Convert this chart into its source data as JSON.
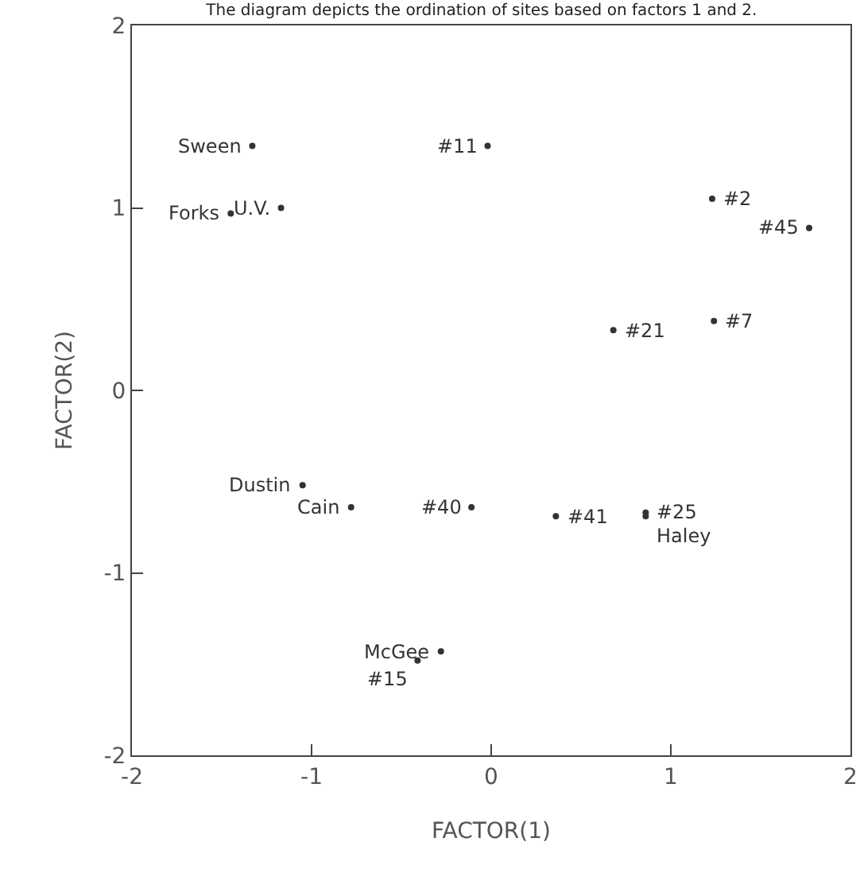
{
  "chart_data": {
    "type": "scatter",
    "title": "The diagram depicts the ordination of sites based on factors 1 and 2.",
    "xlabel": "FACTOR(1)",
    "ylabel": "FACTOR(2)",
    "x": [
      -1.33,
      -0.02,
      -1.45,
      -1.17,
      1.23,
      1.77,
      0.68,
      1.24,
      -1.05,
      -0.78,
      -0.11,
      0.36,
      0.86,
      0.86,
      -0.28,
      -0.41
    ],
    "values": [
      1.34,
      1.34,
      0.97,
      1.0,
      1.05,
      0.89,
      0.33,
      0.38,
      -0.52,
      -0.64,
      -0.64,
      -0.69,
      -0.67,
      -0.69,
      -1.43,
      -1.48
    ],
    "annotations": [
      {
        "text": "Sween",
        "x": -1.33,
        "y": 1.34
      },
      {
        "text": "#11",
        "x": -0.02,
        "y": 1.34
      },
      {
        "text": "Forks",
        "x": -1.45,
        "y": 0.97
      },
      {
        "text": "U.V.",
        "x": -1.17,
        "y": 1.0
      },
      {
        "text": "#2",
        "x": 1.23,
        "y": 1.05
      },
      {
        "text": "#45",
        "x": 1.77,
        "y": 0.89
      },
      {
        "text": "#21",
        "x": 0.68,
        "y": 0.33
      },
      {
        "text": "#7",
        "x": 1.24,
        "y": 0.38
      },
      {
        "text": "Dustin",
        "x": -1.05,
        "y": -0.52
      },
      {
        "text": "Cain",
        "x": -0.78,
        "y": -0.64
      },
      {
        "text": "#40",
        "x": -0.11,
        "y": -0.64
      },
      {
        "text": "#41",
        "x": 0.36,
        "y": -0.69
      },
      {
        "text": "#25",
        "x": 0.86,
        "y": -0.67
      },
      {
        "text": "Haley",
        "x": 0.86,
        "y": -0.69
      },
      {
        "text": "McGee",
        "x": -0.28,
        "y": -1.43
      },
      {
        "text": "#15",
        "x": -0.41,
        "y": -1.48
      }
    ],
    "color": "#333333",
    "marker": "circle",
    "grid": false,
    "legend": false,
    "xlim": [
      -2,
      2
    ],
    "xticks": [
      -2,
      -1,
      0,
      1,
      2
    ],
    "ylim": [
      -2,
      2
    ],
    "yticks": [
      -2,
      -1,
      0,
      1,
      2
    ]
  }
}
